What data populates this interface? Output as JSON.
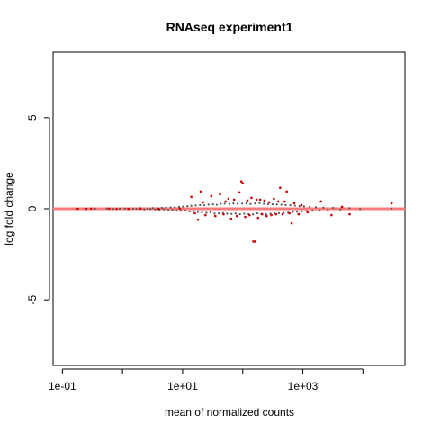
{
  "chart_data": {
    "type": "scatter",
    "title": "RNAseq experiment1",
    "xlabel": "mean of normalized counts",
    "ylabel": "log fold change",
    "x_scale": "log10",
    "xlim": [
      0.07,
      50000
    ],
    "ylim": [
      -8.6,
      8.6
    ],
    "x_ticks": [
      {
        "value": 0.1,
        "label": "1e-01"
      },
      {
        "value": 10,
        "label": "1e+01"
      },
      {
        "value": 1000,
        "label": "1e+03"
      }
    ],
    "x_minor_ticks": [
      1,
      100,
      10000
    ],
    "y_ticks": [
      {
        "value": -5,
        "label": "-5"
      },
      {
        "value": 0,
        "label": "0"
      },
      {
        "value": 5,
        "label": "5"
      }
    ],
    "reference_line": {
      "y": 0,
      "color": "#ff7a7a"
    },
    "colors": {
      "not_significant": "#555555",
      "significant": "#cc0000"
    },
    "grid": false,
    "legend": "none",
    "points_not_significant": [
      {
        "x": 0.35,
        "y": 0.0
      },
      {
        "x": 0.55,
        "y": 0.01
      },
      {
        "x": 0.7,
        "y": -0.01
      },
      {
        "x": 0.9,
        "y": 0.0
      },
      {
        "x": 1.1,
        "y": 0.02
      },
      {
        "x": 1.3,
        "y": -0.02
      },
      {
        "x": 1.5,
        "y": 0.01
      },
      {
        "x": 1.7,
        "y": 0.0
      },
      {
        "x": 2.0,
        "y": 0.03
      },
      {
        "x": 2.3,
        "y": -0.03
      },
      {
        "x": 2.6,
        "y": 0.02
      },
      {
        "x": 2.9,
        "y": -0.01
      },
      {
        "x": 3.2,
        "y": 0.04
      },
      {
        "x": 3.5,
        "y": -0.04
      },
      {
        "x": 3.8,
        "y": 0.03
      },
      {
        "x": 4.1,
        "y": -0.05
      },
      {
        "x": 4.5,
        "y": 0.05
      },
      {
        "x": 4.9,
        "y": -0.03
      },
      {
        "x": 5.3,
        "y": 0.06
      },
      {
        "x": 5.8,
        "y": -0.07
      },
      {
        "x": 6.3,
        "y": 0.07
      },
      {
        "x": 6.8,
        "y": -0.06
      },
      {
        "x": 7.4,
        "y": 0.08
      },
      {
        "x": 8.0,
        "y": -0.09
      },
      {
        "x": 8.7,
        "y": 0.1
      },
      {
        "x": 9.4,
        "y": -0.11
      },
      {
        "x": 10.2,
        "y": 0.12
      },
      {
        "x": 11.0,
        "y": -0.1
      },
      {
        "x": 12.0,
        "y": 0.14
      },
      {
        "x": 13.0,
        "y": -0.15
      },
      {
        "x": 14.0,
        "y": 0.16
      },
      {
        "x": 15.2,
        "y": -0.13
      },
      {
        "x": 16.5,
        "y": 0.18
      },
      {
        "x": 18.0,
        "y": -0.17
      },
      {
        "x": 19.5,
        "y": 0.2
      },
      {
        "x": 21.0,
        "y": -0.2
      },
      {
        "x": 23.0,
        "y": 0.19
      },
      {
        "x": 25.0,
        "y": -0.22
      },
      {
        "x": 27.0,
        "y": 0.23
      },
      {
        "x": 29.0,
        "y": -0.19
      },
      {
        "x": 32.0,
        "y": 0.24
      },
      {
        "x": 34.0,
        "y": -0.26
      },
      {
        "x": 37.0,
        "y": 0.22
      },
      {
        "x": 40.0,
        "y": -0.25
      },
      {
        "x": 43.0,
        "y": 0.27
      },
      {
        "x": 47.0,
        "y": -0.24
      },
      {
        "x": 50.0,
        "y": 0.28
      },
      {
        "x": 55.0,
        "y": -0.27
      },
      {
        "x": 60.0,
        "y": 0.26
      },
      {
        "x": 65.0,
        "y": -0.28
      },
      {
        "x": 70.0,
        "y": 0.29
      },
      {
        "x": 76.0,
        "y": -0.26
      },
      {
        "x": 82.0,
        "y": 0.27
      },
      {
        "x": 90.0,
        "y": -0.3
      },
      {
        "x": 98.0,
        "y": 0.28
      },
      {
        "x": 106.0,
        "y": -0.27
      },
      {
        "x": 115.0,
        "y": 0.3
      },
      {
        "x": 125.0,
        "y": -0.29
      },
      {
        "x": 135.0,
        "y": 0.26
      },
      {
        "x": 148.0,
        "y": -0.31
      },
      {
        "x": 160.0,
        "y": 0.29
      },
      {
        "x": 175.0,
        "y": -0.25
      },
      {
        "x": 190.0,
        "y": 0.3
      },
      {
        "x": 205.0,
        "y": -0.28
      },
      {
        "x": 225.0,
        "y": 0.27
      },
      {
        "x": 245.0,
        "y": -0.3
      },
      {
        "x": 265.0,
        "y": 0.25
      },
      {
        "x": 290.0,
        "y": -0.27
      },
      {
        "x": 315.0,
        "y": 0.24
      },
      {
        "x": 340.0,
        "y": -0.26
      },
      {
        "x": 370.0,
        "y": 0.23
      },
      {
        "x": 400.0,
        "y": -0.24
      },
      {
        "x": 440.0,
        "y": 0.22
      },
      {
        "x": 480.0,
        "y": -0.23
      },
      {
        "x": 520.0,
        "y": 0.2
      },
      {
        "x": 570.0,
        "y": -0.21
      },
      {
        "x": 620.0,
        "y": 0.19
      },
      {
        "x": 680.0,
        "y": -0.18
      },
      {
        "x": 740.0,
        "y": 0.17
      },
      {
        "x": 800.0,
        "y": -0.16
      },
      {
        "x": 880.0,
        "y": 0.15
      },
      {
        "x": 960.0,
        "y": -0.14
      },
      {
        "x": 1050.0,
        "y": 0.13
      },
      {
        "x": 1150.0,
        "y": -0.12
      },
      {
        "x": 1300.0,
        "y": 0.1
      },
      {
        "x": 1450.0,
        "y": -0.1
      },
      {
        "x": 1650.0,
        "y": 0.08
      },
      {
        "x": 1900.0,
        "y": -0.07
      },
      {
        "x": 2200.0,
        "y": 0.06
      },
      {
        "x": 2600.0,
        "y": -0.05
      },
      {
        "x": 3200.0,
        "y": 0.05
      },
      {
        "x": 4200.0,
        "y": -0.04
      },
      {
        "x": 6000.0,
        "y": 0.03
      },
      {
        "x": 9000.0,
        "y": -0.02
      },
      {
        "x": 30000.0,
        "y": 0.02
      }
    ],
    "points_significant": [
      {
        "x": 0.18,
        "y": 0.0
      },
      {
        "x": 0.25,
        "y": 0.0
      },
      {
        "x": 0.3,
        "y": 0.01
      },
      {
        "x": 0.6,
        "y": 0.01
      },
      {
        "x": 0.8,
        "y": 0.0
      },
      {
        "x": 1.25,
        "y": 0.0
      },
      {
        "x": 2.0,
        "y": 0.01
      },
      {
        "x": 4.0,
        "y": 0.0
      },
      {
        "x": 9.0,
        "y": 0.01
      },
      {
        "x": 14.0,
        "y": 0.65
      },
      {
        "x": 16.0,
        "y": -0.25
      },
      {
        "x": 18.0,
        "y": -0.6
      },
      {
        "x": 20.0,
        "y": 0.95
      },
      {
        "x": 22.0,
        "y": 0.35
      },
      {
        "x": 24.0,
        "y": -0.35
      },
      {
        "x": 30.0,
        "y": 0.7
      },
      {
        "x": 35.0,
        "y": -0.4
      },
      {
        "x": 42.0,
        "y": 0.8
      },
      {
        "x": 48.0,
        "y": -0.3
      },
      {
        "x": 52.0,
        "y": 0.4
      },
      {
        "x": 58.0,
        "y": 0.55
      },
      {
        "x": 64.0,
        "y": -0.55
      },
      {
        "x": 72.0,
        "y": 0.5
      },
      {
        "x": 80.0,
        "y": -0.4
      },
      {
        "x": 88.0,
        "y": 0.9
      },
      {
        "x": 95.0,
        "y": 1.5
      },
      {
        "x": 100.0,
        "y": 1.4
      },
      {
        "x": 110.0,
        "y": -0.45
      },
      {
        "x": 120.0,
        "y": 0.45
      },
      {
        "x": 130.0,
        "y": -0.35
      },
      {
        "x": 140.0,
        "y": 0.6
      },
      {
        "x": 150.0,
        "y": -1.8
      },
      {
        "x": 160.0,
        "y": -1.8
      },
      {
        "x": 170.0,
        "y": 0.5
      },
      {
        "x": 180.0,
        "y": -0.5
      },
      {
        "x": 195.0,
        "y": 0.5
      },
      {
        "x": 210.0,
        "y": -0.3
      },
      {
        "x": 230.0,
        "y": 0.45
      },
      {
        "x": 250.0,
        "y": -0.4
      },
      {
        "x": 275.0,
        "y": 0.35
      },
      {
        "x": 300.0,
        "y": -0.35
      },
      {
        "x": 330.0,
        "y": 0.55
      },
      {
        "x": 360.0,
        "y": -0.3
      },
      {
        "x": 390.0,
        "y": 0.4
      },
      {
        "x": 420.0,
        "y": 1.15
      },
      {
        "x": 460.0,
        "y": -0.3
      },
      {
        "x": 500.0,
        "y": 0.4
      },
      {
        "x": 540.0,
        "y": 0.95
      },
      {
        "x": 600.0,
        "y": -0.25
      },
      {
        "x": 650.0,
        "y": -0.8
      },
      {
        "x": 720.0,
        "y": 0.3
      },
      {
        "x": 850.0,
        "y": -0.3
      },
      {
        "x": 950.0,
        "y": 0.2
      },
      {
        "x": 1200.0,
        "y": -0.2
      },
      {
        "x": 2000.0,
        "y": 0.4
      },
      {
        "x": 3000.0,
        "y": -0.35
      },
      {
        "x": 4500.0,
        "y": 0.1
      },
      {
        "x": 6000.0,
        "y": -0.3
      },
      {
        "x": 30000.0,
        "y": 0.3
      }
    ]
  }
}
